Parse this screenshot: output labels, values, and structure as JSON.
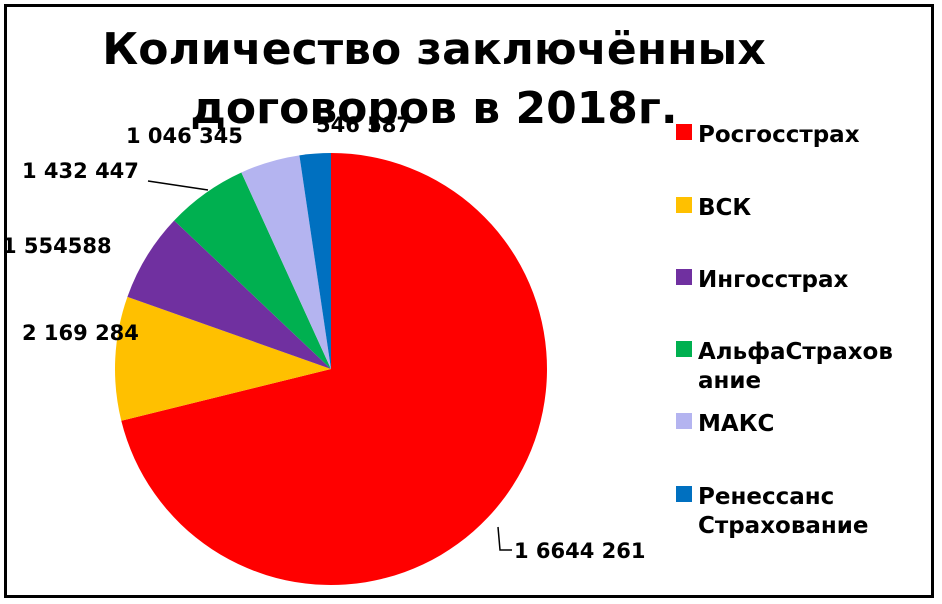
{
  "chart_data": {
    "type": "pie",
    "title_lines": [
      "Количество заключённых",
      "договоров в 2018г."
    ],
    "slices": [
      {
        "label": "Росгосстрах",
        "value": 16644261,
        "display": "1 6644 261",
        "color": "#ff0000"
      },
      {
        "label": "ВСК",
        "value": 2169284,
        "display": "2 169 284",
        "color": "#ffc000"
      },
      {
        "label": "Ингосстрах",
        "value": 1554588,
        "display": "1 554588",
        "color": "#7030a0"
      },
      {
        "label": "АльфаСтрахование",
        "value": 1432447,
        "display": "1 432 447",
        "color": "#00b050"
      },
      {
        "label": "МАКС",
        "value": 1046345,
        "display": "1 046 345",
        "color": "#b4b4f0"
      },
      {
        "label": "Ренессанс Страхование",
        "value": 546587,
        "display": "546 587",
        "color": "#0070c0"
      }
    ],
    "legend_position": "right",
    "legend_lines": [
      [
        "Росгосстрах"
      ],
      [
        "ВСК"
      ],
      [
        "Ингосстрах"
      ],
      [
        "АльфаСтрахов",
        "ание"
      ],
      [
        "МАКС"
      ],
      [
        "Ренессанс",
        "Страхование"
      ]
    ]
  }
}
